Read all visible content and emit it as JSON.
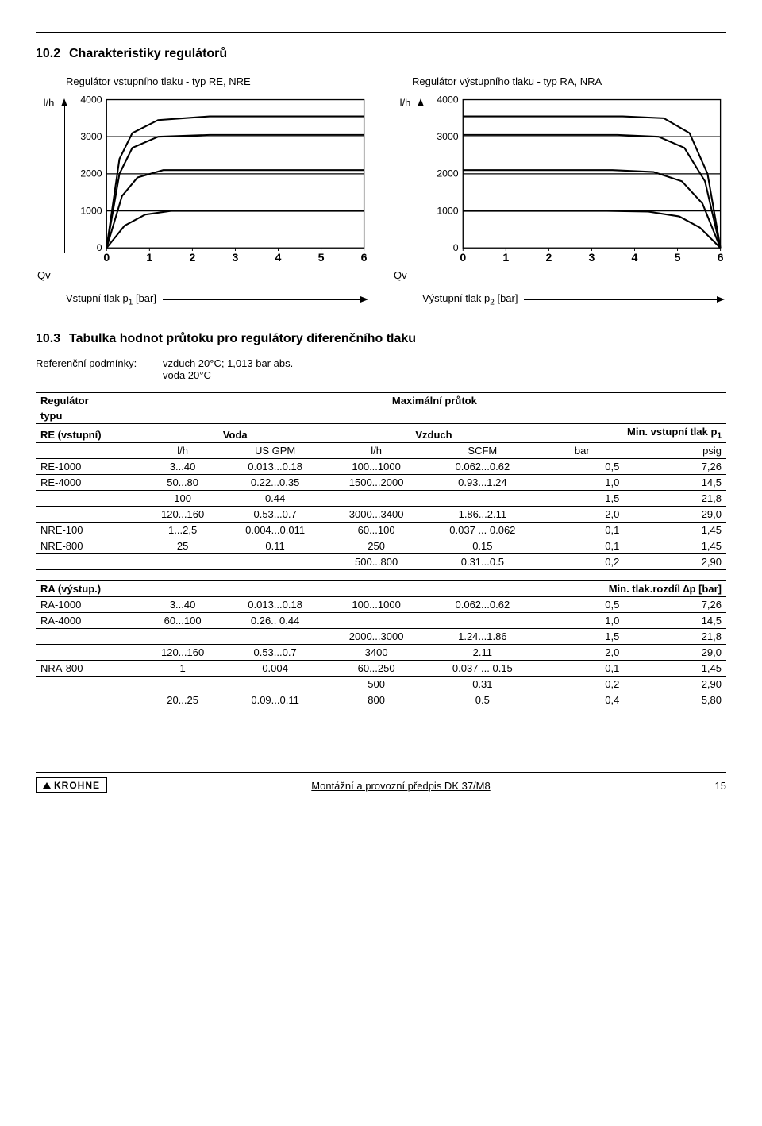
{
  "section": {
    "num1": "10.2",
    "title1": "Charakteristiky regulátorů",
    "chart_title_left": "Regulátor vstupního tlaku - typ RE, NRE",
    "chart_title_right": "Regulátor výstupního tlaku - typ RA, NRA",
    "y_label": "l/h",
    "qv_label": "Qv",
    "x_label_left_a": "Vstupní tlak p",
    "x_label_left_sub": "1",
    "x_label_left_b": " [bar]",
    "x_label_right_a": "Výstupní tlak p",
    "x_label_right_sub": "2",
    "x_label_right_b": " [bar]",
    "num2": "10.3",
    "title2": "Tabulka hodnot průtoku pro regulátory diferenčního tlaku",
    "ref_label": "Referenční podmínky:",
    "ref_line1": "vzduch 20°C; 1,013 bar abs.",
    "ref_line2": "voda 20°C"
  },
  "charts": {
    "y_ticks": [
      "4000",
      "3000",
      "2000",
      "1000",
      "0"
    ],
    "x_ticks": [
      "0",
      "1",
      "2",
      "3",
      "4",
      "5",
      "6"
    ],
    "grid_color": "#000",
    "bg": "#fff",
    "grid_width": 1.4,
    "left_curves": [
      [
        [
          0,
          0
        ],
        [
          5,
          2400
        ],
        [
          10,
          3100
        ],
        [
          20,
          3450
        ],
        [
          40,
          3550
        ],
        [
          100,
          3550
        ]
      ],
      [
        [
          0,
          0
        ],
        [
          5,
          2000
        ],
        [
          10,
          2700
        ],
        [
          20,
          3000
        ],
        [
          40,
          3050
        ],
        [
          100,
          3050
        ]
      ],
      [
        [
          0,
          0
        ],
        [
          6,
          1400
        ],
        [
          12,
          1900
        ],
        [
          22,
          2100
        ],
        [
          40,
          2100
        ],
        [
          100,
          2100
        ]
      ],
      [
        [
          0,
          0
        ],
        [
          7,
          600
        ],
        [
          15,
          900
        ],
        [
          25,
          1000
        ],
        [
          40,
          1000
        ],
        [
          100,
          1000
        ]
      ]
    ],
    "right_curves": [
      [
        [
          0,
          3550
        ],
        [
          62,
          3550
        ],
        [
          78,
          3500
        ],
        [
          88,
          3100
        ],
        [
          95,
          2000
        ],
        [
          100,
          0
        ]
      ],
      [
        [
          0,
          3050
        ],
        [
          60,
          3050
        ],
        [
          76,
          3000
        ],
        [
          86,
          2700
        ],
        [
          94,
          1800
        ],
        [
          100,
          0
        ]
      ],
      [
        [
          0,
          2100
        ],
        [
          58,
          2100
        ],
        [
          74,
          2050
        ],
        [
          85,
          1800
        ],
        [
          93,
          1200
        ],
        [
          100,
          0
        ]
      ],
      [
        [
          0,
          1000
        ],
        [
          56,
          1000
        ],
        [
          72,
          980
        ],
        [
          84,
          850
        ],
        [
          92,
          550
        ],
        [
          100,
          0
        ]
      ]
    ]
  },
  "table1": {
    "reg_typu1": "Regulátor",
    "reg_typu2": "typu",
    "maxflow": "Maximální průtok",
    "re_vstup": "RE (vstupní)",
    "voda": "Voda",
    "vzduch": "Vzduch",
    "min_vstup": "Min. vstupní tlak p",
    "min_vstup_sub": "1",
    "u_lh": "l/h",
    "u_gpm": "US GPM",
    "u_scfm": "SCFM",
    "u_bar": "bar",
    "u_psig": "psig",
    "rows": [
      [
        "RE-1000",
        "3...40",
        "0.013...0.18",
        "100...1000",
        "0.062...0.62",
        "0,5",
        "7,26"
      ],
      [
        "RE-4000",
        "50...80",
        "0.22...0.35",
        "1500...2000",
        "0.93...1.24",
        "1,0",
        "14,5"
      ],
      [
        "",
        "100",
        "0.44",
        "",
        "",
        "1,5",
        "21,8"
      ],
      [
        "",
        "120...160",
        "0.53...0.7",
        "3000...3400",
        "1.86...2.11",
        "2,0",
        "29,0"
      ],
      [
        "NRE-100",
        "1...2,5",
        "0.004...0.011",
        "60...100",
        "0.037 ... 0.062",
        "0,1",
        "1,45"
      ],
      [
        "NRE-800",
        "25",
        "0.11",
        "250",
        "0.15",
        "0,1",
        "1,45"
      ],
      [
        "",
        "",
        "",
        "500...800",
        "0.31...0.5",
        "0,2",
        "2,90"
      ]
    ],
    "ra_vystup": "RA (výstup.)",
    "min_rozd": "Min. tlak.rozdíl ∆p [bar]",
    "rows2": [
      [
        "RA-1000",
        "3...40",
        "0.013...0.18",
        "100...1000",
        "0.062...0.62",
        "0,5",
        "7,26"
      ],
      [
        "RA-4000",
        "60...100",
        "0.26.. 0.44",
        "",
        "",
        "1,0",
        "14,5"
      ],
      [
        "",
        "",
        "",
        "2000...3000",
        "1.24...1.86",
        "1,5",
        "21,8"
      ],
      [
        "",
        "120...160",
        "0.53...0.7",
        "3400",
        "2.11",
        "2,0",
        "29,0"
      ],
      [
        "NRA-800",
        "1",
        "0.004",
        "60...250",
        "0.037 ... 0.15",
        "0,1",
        "1,45"
      ],
      [
        "",
        "",
        "",
        "500",
        "0.31",
        "0,2",
        "2,90"
      ],
      [
        "",
        "20...25",
        "0.09...0.11",
        "800",
        "0.5",
        "0,4",
        "5,80"
      ]
    ]
  },
  "footer": {
    "logo": "KROHNE",
    "mid": "Montážní a provozní předpis DK 37/M8",
    "page": "15"
  }
}
